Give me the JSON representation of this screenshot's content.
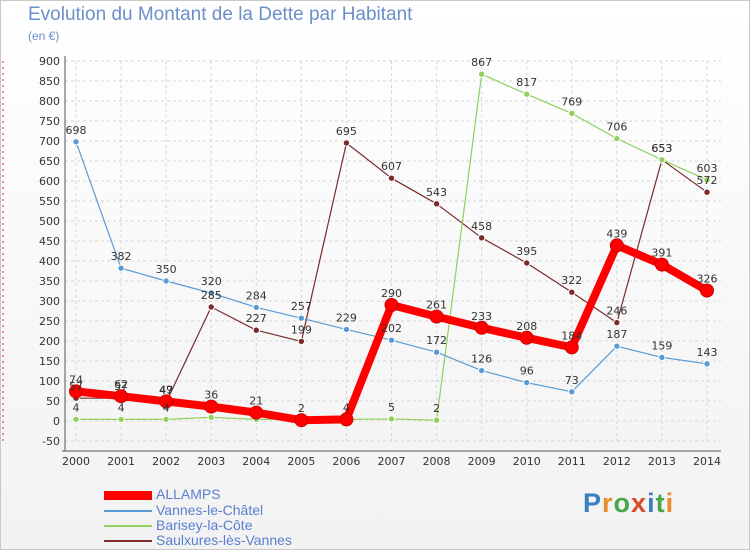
{
  "title": "Evolution du Montant de la Dette par Habitant",
  "unit": "(en €)",
  "brand": {
    "text": "Proxiti",
    "letter_colors": [
      "#3a7fc4",
      "#e98a2b",
      "#4aa64a",
      "#d94a2b",
      "#3a7fc4",
      "#4aa64a",
      "#e98a2b"
    ]
  },
  "chart_data": {
    "type": "line",
    "title": "Evolution du Montant de la Dette par Habitant",
    "ylabel": "(en €)",
    "xlabel": "",
    "ylim": [
      -50,
      900
    ],
    "ytick_step": 50,
    "grid": true,
    "legend_position": "bottom-left",
    "x": [
      "2000",
      "2001",
      "2002",
      "2003",
      "2004",
      "2005",
      "2006",
      "2007",
      "2008",
      "2009",
      "2010",
      "2011",
      "2012",
      "2013",
      "2014"
    ],
    "yticks": [
      "900",
      "850",
      "800",
      "750",
      "700",
      "650",
      "600",
      "550",
      "500",
      "450",
      "400",
      "350",
      "300",
      "250",
      "200",
      "150",
      "100",
      "50",
      "0",
      "-50"
    ],
    "series": [
      {
        "name": "ALLAMPS",
        "color": "#ff0000",
        "values": [
          74,
          62,
          49,
          36,
          21,
          2,
          4,
          290,
          261,
          233,
          208,
          184,
          439,
          391,
          326
        ],
        "labels": [
          "74",
          "62",
          "49",
          "36",
          "21",
          "2",
          "4",
          "290",
          "261",
          "233",
          "208",
          "184",
          "439",
          "391",
          "326"
        ]
      },
      {
        "name": "Vannes-le-Châtel",
        "color": "#5b9bd5",
        "values": [
          698,
          382,
          350,
          320,
          284,
          257,
          229,
          202,
          172,
          126,
          96,
          73,
          187,
          159,
          143
        ],
        "labels": [
          "698",
          "382",
          "350",
          "320",
          "284",
          "257",
          "229",
          "202",
          "172",
          "126",
          "96",
          "73",
          "187",
          "159",
          "143"
        ]
      },
      {
        "name": "Barisey-la-Côte",
        "color": "#8fd15a",
        "values": [
          4,
          4,
          4,
          9,
          4,
          4,
          4,
          5,
          2,
          867,
          817,
          769,
          706,
          653,
          603
        ],
        "labels": [
          "4",
          "4",
          "4",
          "",
          "",
          "",
          "",
          "5",
          "2",
          "867",
          "817",
          "769",
          "706",
          "653",
          "603"
        ]
      },
      {
        "name": "Saulxures-lès-Vannes",
        "color": "#7a2a2a",
        "values": [
          57,
          57,
          47,
          285,
          227,
          199,
          695,
          607,
          543,
          458,
          395,
          322,
          246,
          653,
          572
        ],
        "labels": [
          "57",
          "57",
          "47",
          "285",
          "227",
          "199",
          "695",
          "607",
          "543",
          "458",
          "395",
          "322",
          "246",
          "653",
          "572"
        ]
      }
    ]
  }
}
